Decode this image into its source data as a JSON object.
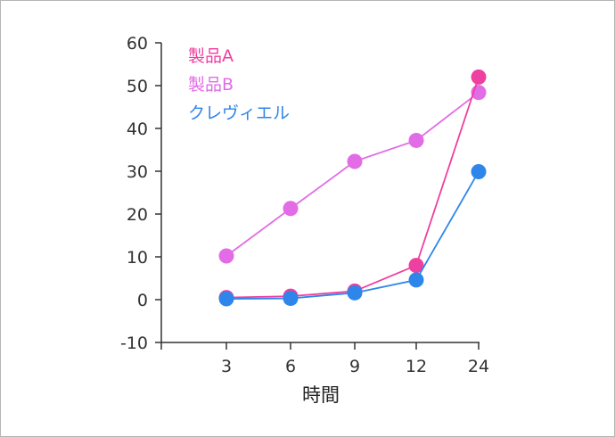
{
  "chart_data": {
    "type": "line",
    "categories": [
      "3",
      "6",
      "9",
      "12",
      "24"
    ],
    "series": [
      {
        "name": "製品A",
        "color": "#ef3fa0",
        "values": [
          0.5,
          0.8,
          2.0,
          8.0,
          52.0
        ]
      },
      {
        "name": "製品B",
        "color": "#e26be6",
        "values": [
          10.2,
          21.3,
          32.3,
          37.2,
          48.4
        ]
      },
      {
        "name": "クレヴィエル",
        "color": "#2f86ea",
        "values": [
          0.2,
          0.3,
          1.6,
          4.6,
          29.9
        ]
      }
    ],
    "draw_order": [
      1,
      0,
      2
    ],
    "y_ticks": [
      -10,
      0,
      10,
      20,
      30,
      40,
      50,
      60
    ],
    "y_tick_labels": [
      "-10",
      "0",
      "10",
      "20",
      "30",
      "40",
      "50",
      "60"
    ],
    "xlabel": "時間",
    "ylabel": "",
    "ylim": [
      -10,
      60
    ],
    "legend_position": "top-left",
    "grid": false
  }
}
